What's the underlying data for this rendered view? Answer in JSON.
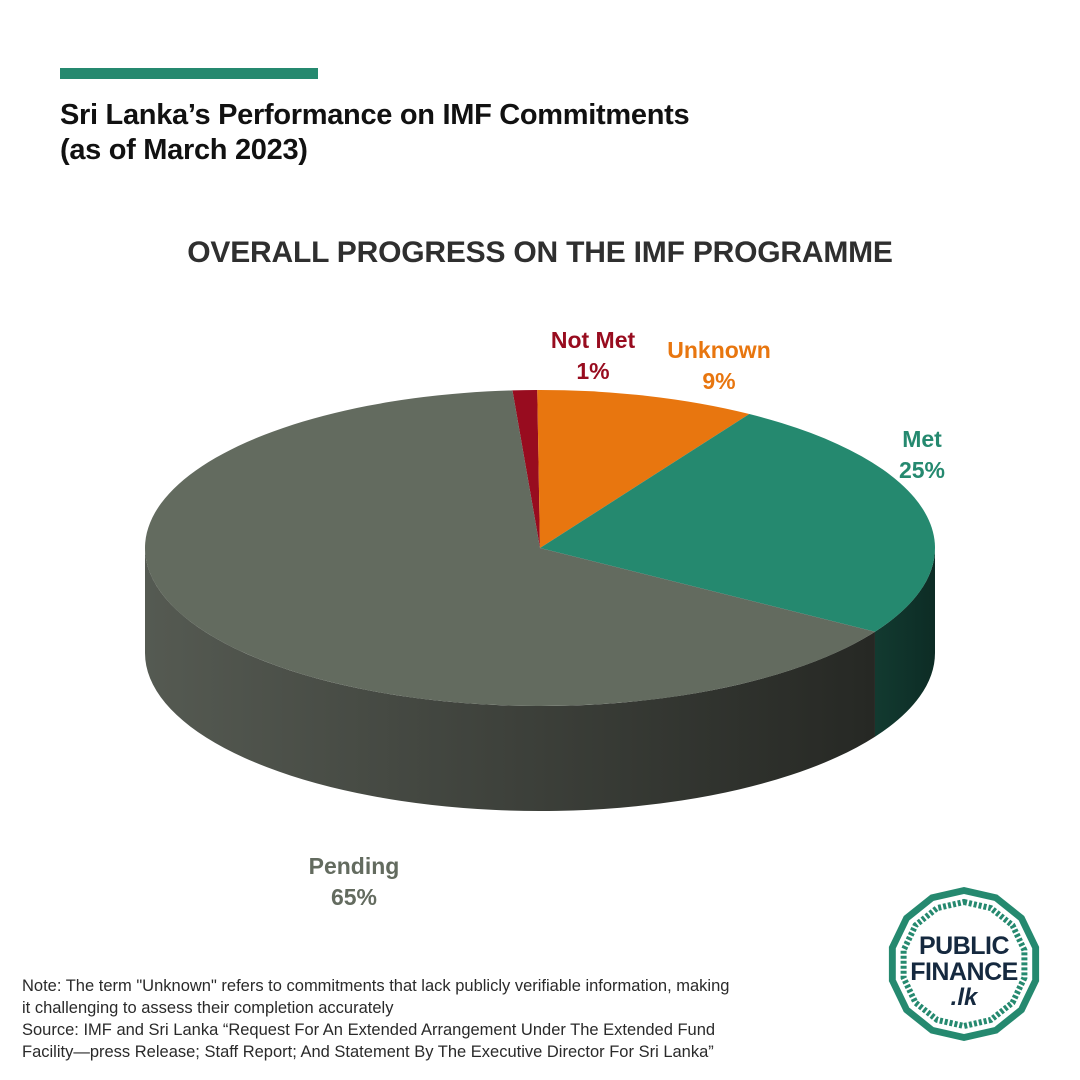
{
  "header": {
    "title_line1": "Sri Lanka’s Performance on IMF Commitments",
    "title_line2": "(as of March 2023)",
    "accent_color": "#25896f"
  },
  "chart_data": {
    "type": "pie",
    "title": "OVERALL PROGRESS ON THE IMF PROGRAMME",
    "style": "3d",
    "slices": [
      {
        "label": "Not Met",
        "value": 1,
        "value_label": "1%",
        "color": "#980c1f"
      },
      {
        "label": "Unknown",
        "value": 9,
        "value_label": "9%",
        "color": "#e8760f"
      },
      {
        "label": "Met",
        "value": 25,
        "value_label": "25%",
        "color": "#25896f"
      },
      {
        "label": "Pending",
        "value": 65,
        "value_label": "65%",
        "color": "#636b5f"
      }
    ]
  },
  "footer": {
    "note_line1": "Note: The term \"Unknown\" refers to commitments that lack publicly verifiable information, making",
    "note_line2": "it challenging to assess their completion accurately",
    "source_line1": "Source: IMF and Sri Lanka “Request For An Extended Arrangement Under The Extended Fund",
    "source_line2": "Facility—press Release; Staff Report; And Statement By The Executive Director For Sri Lanka”"
  },
  "logo": {
    "line1": "PUBLIC",
    "line2": "FINANCE",
    "line3": ".lk",
    "color": "#25896f"
  }
}
